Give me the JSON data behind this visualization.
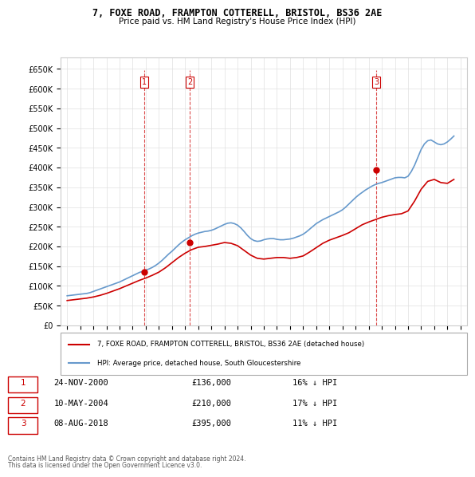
{
  "title1": "7, FOXE ROAD, FRAMPTON COTTERELL, BRISTOL, BS36 2AE",
  "title2": "Price paid vs. HM Land Registry's House Price Index (HPI)",
  "legend_label1": "7, FOXE ROAD, FRAMPTON COTTERELL, BRISTOL, BS36 2AE (detached house)",
  "legend_label2": "HPI: Average price, detached house, South Gloucestershire",
  "footer1": "Contains HM Land Registry data © Crown copyright and database right 2024.",
  "footer2": "This data is licensed under the Open Government Licence v3.0.",
  "sale_color": "#cc0000",
  "hpi_color": "#6699cc",
  "sales": [
    {
      "num": 1,
      "date": "24-NOV-2000",
      "price": 136000,
      "pct": "16%",
      "x_year": 2000.9
    },
    {
      "num": 2,
      "date": "10-MAY-2004",
      "price": 210000,
      "pct": "17%",
      "x_year": 2004.37
    },
    {
      "num": 3,
      "date": "08-AUG-2018",
      "price": 395000,
      "pct": "11%",
      "x_year": 2018.6
    }
  ],
  "ylim": [
    0,
    680000
  ],
  "xlim": [
    1994.5,
    2025.5
  ],
  "yticks": [
    0,
    50000,
    100000,
    150000,
    200000,
    250000,
    300000,
    350000,
    400000,
    450000,
    500000,
    550000,
    600000,
    650000
  ],
  "xticks": [
    1995,
    1996,
    1997,
    1998,
    1999,
    2000,
    2001,
    2002,
    2003,
    2004,
    2005,
    2006,
    2007,
    2008,
    2009,
    2010,
    2011,
    2012,
    2013,
    2014,
    2015,
    2016,
    2017,
    2018,
    2019,
    2020,
    2021,
    2022,
    2023,
    2024,
    2025
  ],
  "hpi_data": {
    "years": [
      1995,
      1995.25,
      1995.5,
      1995.75,
      1996,
      1996.25,
      1996.5,
      1996.75,
      1997,
      1997.25,
      1997.5,
      1997.75,
      1998,
      1998.25,
      1998.5,
      1998.75,
      1999,
      1999.25,
      1999.5,
      1999.75,
      2000,
      2000.25,
      2000.5,
      2000.75,
      2001,
      2001.25,
      2001.5,
      2001.75,
      2002,
      2002.25,
      2002.5,
      2002.75,
      2003,
      2003.25,
      2003.5,
      2003.75,
      2004,
      2004.25,
      2004.5,
      2004.75,
      2005,
      2005.25,
      2005.5,
      2005.75,
      2006,
      2006.25,
      2006.5,
      2006.75,
      2007,
      2007.25,
      2007.5,
      2007.75,
      2008,
      2008.25,
      2008.5,
      2008.75,
      2009,
      2009.25,
      2009.5,
      2009.75,
      2010,
      2010.25,
      2010.5,
      2010.75,
      2011,
      2011.25,
      2011.5,
      2011.75,
      2012,
      2012.25,
      2012.5,
      2012.75,
      2013,
      2013.25,
      2013.5,
      2013.75,
      2014,
      2014.25,
      2014.5,
      2014.75,
      2015,
      2015.25,
      2015.5,
      2015.75,
      2016,
      2016.25,
      2016.5,
      2016.75,
      2017,
      2017.25,
      2017.5,
      2017.75,
      2018,
      2018.25,
      2018.5,
      2018.75,
      2019,
      2019.25,
      2019.5,
      2019.75,
      2020,
      2020.25,
      2020.5,
      2020.75,
      2021,
      2021.25,
      2021.5,
      2021.75,
      2022,
      2022.25,
      2022.5,
      2022.75,
      2023,
      2023.25,
      2023.5,
      2023.75,
      2024,
      2024.25,
      2024.5
    ],
    "values": [
      75000,
      76000,
      77000,
      78000,
      79000,
      80000,
      81000,
      83000,
      86000,
      89000,
      92000,
      95000,
      98000,
      101000,
      104000,
      107000,
      110000,
      114000,
      118000,
      122000,
      126000,
      130000,
      134000,
      137000,
      140000,
      143000,
      147000,
      152000,
      158000,
      165000,
      173000,
      181000,
      188000,
      196000,
      204000,
      211000,
      217000,
      222000,
      227000,
      231000,
      234000,
      236000,
      238000,
      239000,
      241000,
      244000,
      248000,
      252000,
      256000,
      259000,
      260000,
      258000,
      254000,
      247000,
      238000,
      228000,
      220000,
      215000,
      213000,
      214000,
      217000,
      219000,
      220000,
      220000,
      218000,
      217000,
      217000,
      218000,
      219000,
      221000,
      224000,
      227000,
      231000,
      237000,
      244000,
      251000,
      258000,
      263000,
      268000,
      272000,
      276000,
      280000,
      284000,
      288000,
      293000,
      300000,
      308000,
      316000,
      324000,
      331000,
      337000,
      343000,
      348000,
      353000,
      357000,
      360000,
      362000,
      365000,
      368000,
      371000,
      374000,
      375000,
      375000,
      374000,
      378000,
      390000,
      406000,
      426000,
      446000,
      460000,
      468000,
      470000,
      465000,
      460000,
      458000,
      460000,
      465000,
      472000,
      480000
    ]
  },
  "sale_hpi_data": {
    "years": [
      1995,
      1995.5,
      1996,
      1996.5,
      1997,
      1997.5,
      1998,
      1998.5,
      1999,
      1999.5,
      2000,
      2000.5,
      2001,
      2001.5,
      2002,
      2002.5,
      2003,
      2003.5,
      2004,
      2004.5,
      2005,
      2005.5,
      2006,
      2006.5,
      2007,
      2007.5,
      2008,
      2008.5,
      2009,
      2009.5,
      2010,
      2010.5,
      2011,
      2011.5,
      2012,
      2012.5,
      2013,
      2013.5,
      2014,
      2014.5,
      2015,
      2015.5,
      2016,
      2016.5,
      2017,
      2017.5,
      2018,
      2018.5,
      2019,
      2019.5,
      2020,
      2020.5,
      2021,
      2021.5,
      2022,
      2022.5,
      2023,
      2023.5,
      2024,
      2024.5
    ],
    "values": [
      63000,
      65000,
      67000,
      69000,
      72000,
      76000,
      81000,
      87000,
      93000,
      100000,
      107000,
      114000,
      120000,
      127000,
      135000,
      146000,
      159000,
      172000,
      183000,
      192000,
      198000,
      200000,
      203000,
      206000,
      210000,
      208000,
      202000,
      190000,
      178000,
      170000,
      168000,
      170000,
      172000,
      172000,
      170000,
      172000,
      176000,
      186000,
      197000,
      208000,
      216000,
      222000,
      228000,
      235000,
      245000,
      255000,
      262000,
      268000,
      274000,
      278000,
      281000,
      283000,
      290000,
      315000,
      345000,
      365000,
      370000,
      362000,
      360000,
      370000
    ]
  }
}
